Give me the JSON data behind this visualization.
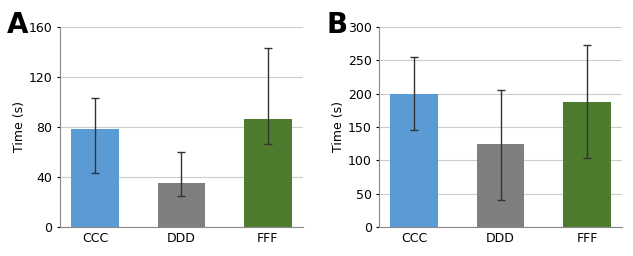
{
  "panel_A": {
    "label": "A",
    "categories": [
      "CCC",
      "DDD",
      "FFF"
    ],
    "values": [
      78,
      35,
      86
    ],
    "errors_up": [
      25,
      25,
      57
    ],
    "errors_down": [
      35,
      10,
      20
    ],
    "bar_colors": [
      "#5B9BD5",
      "#7F7F7F",
      "#4E7C2F"
    ],
    "ylabel": "Time (s)",
    "ylim": [
      0,
      160
    ],
    "yticks": [
      0,
      40,
      80,
      120,
      160
    ]
  },
  "panel_B": {
    "label": "B",
    "categories": [
      "CCC",
      "DDD",
      "FFF"
    ],
    "values": [
      200,
      125,
      188
    ],
    "errors_up": [
      55,
      80,
      85
    ],
    "errors_down": [
      55,
      85,
      85
    ],
    "bar_colors": [
      "#5B9BD5",
      "#7F7F7F",
      "#4E7C2F"
    ],
    "ylabel": "Time (s)",
    "ylim": [
      0,
      300
    ],
    "yticks": [
      0,
      50,
      100,
      150,
      200,
      250,
      300
    ]
  },
  "background_color": "#FFFFFF",
  "figure_background": "#FFFFFF",
  "bar_width": 0.55,
  "label_fontsize": 20,
  "axis_fontsize": 9,
  "tick_fontsize": 9,
  "grid_color": "#CCCCCC"
}
